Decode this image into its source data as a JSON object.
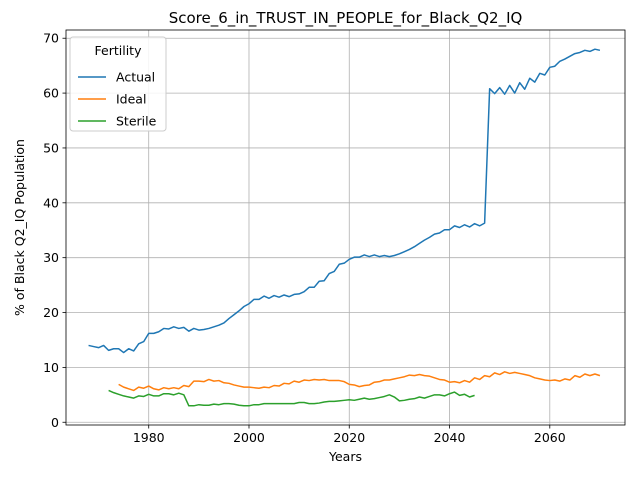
{
  "chart_data": {
    "type": "line",
    "title": "Score_6_in_TRUST_IN_PEOPLE_for_Black_Q2_IQ",
    "xlabel": "Years",
    "ylabel": "% of Black Q2_IQ Population",
    "xlim": [
      1963.5,
      2075
    ],
    "ylim": [
      -0.5,
      71.5
    ],
    "xticks": [
      1980,
      2000,
      2020,
      2040,
      2060
    ],
    "yticks": [
      0,
      10,
      20,
      30,
      40,
      50,
      60,
      70
    ],
    "grid": true,
    "legend": {
      "title": "Fertility",
      "placement": "top-left"
    },
    "series": [
      {
        "name": "Actual",
        "color": "#1f77b4",
        "points": [
          [
            1968,
            14.0
          ],
          [
            1969,
            13.8
          ],
          [
            1970,
            13.6
          ],
          [
            1971,
            14.0
          ],
          [
            1972,
            13.1
          ],
          [
            1973,
            13.4
          ],
          [
            1974,
            13.4
          ],
          [
            1975,
            12.7
          ],
          [
            1976,
            13.4
          ],
          [
            1977,
            13.0
          ],
          [
            1978,
            14.3
          ],
          [
            1979,
            14.7
          ],
          [
            1980,
            16.2
          ],
          [
            1981,
            16.2
          ],
          [
            1982,
            16.5
          ],
          [
            1983,
            17.1
          ],
          [
            1984,
            17.0
          ],
          [
            1985,
            17.4
          ],
          [
            1986,
            17.1
          ],
          [
            1987,
            17.3
          ],
          [
            1988,
            16.6
          ],
          [
            1989,
            17.1
          ],
          [
            1990,
            16.8
          ],
          [
            1991,
            16.9
          ],
          [
            1992,
            17.1
          ],
          [
            1993,
            17.4
          ],
          [
            1994,
            17.7
          ],
          [
            1995,
            18.1
          ],
          [
            1996,
            18.9
          ],
          [
            1997,
            19.6
          ],
          [
            1998,
            20.3
          ],
          [
            1999,
            21.1
          ],
          [
            2000,
            21.6
          ],
          [
            2001,
            22.4
          ],
          [
            2002,
            22.4
          ],
          [
            2003,
            23.0
          ],
          [
            2004,
            22.6
          ],
          [
            2005,
            23.1
          ],
          [
            2006,
            22.8
          ],
          [
            2007,
            23.2
          ],
          [
            2008,
            22.9
          ],
          [
            2009,
            23.3
          ],
          [
            2010,
            23.4
          ],
          [
            2011,
            23.8
          ],
          [
            2012,
            24.6
          ],
          [
            2013,
            24.6
          ],
          [
            2014,
            25.7
          ],
          [
            2015,
            25.8
          ],
          [
            2016,
            27.1
          ],
          [
            2017,
            27.5
          ],
          [
            2018,
            28.8
          ],
          [
            2019,
            29.0
          ],
          [
            2020,
            29.7
          ],
          [
            2021,
            30.1
          ],
          [
            2022,
            30.1
          ],
          [
            2023,
            30.5
          ],
          [
            2024,
            30.2
          ],
          [
            2025,
            30.5
          ],
          [
            2026,
            30.2
          ],
          [
            2027,
            30.4
          ],
          [
            2028,
            30.2
          ],
          [
            2029,
            30.4
          ],
          [
            2030,
            30.7
          ],
          [
            2031,
            31.1
          ],
          [
            2032,
            31.5
          ],
          [
            2033,
            32.0
          ],
          [
            2034,
            32.6
          ],
          [
            2035,
            33.2
          ],
          [
            2036,
            33.7
          ],
          [
            2037,
            34.3
          ],
          [
            2038,
            34.5
          ],
          [
            2039,
            35.1
          ],
          [
            2040,
            35.1
          ],
          [
            2041,
            35.8
          ],
          [
            2042,
            35.5
          ],
          [
            2043,
            36.0
          ],
          [
            2044,
            35.6
          ],
          [
            2045,
            36.2
          ],
          [
            2046,
            35.8
          ],
          [
            2047,
            36.3
          ],
          [
            2048,
            60.8
          ],
          [
            2049,
            59.9
          ],
          [
            2050,
            61.0
          ],
          [
            2051,
            59.8
          ],
          [
            2052,
            61.4
          ],
          [
            2053,
            60.0
          ],
          [
            2054,
            61.9
          ],
          [
            2055,
            60.7
          ],
          [
            2056,
            62.7
          ],
          [
            2057,
            62.0
          ],
          [
            2058,
            63.6
          ],
          [
            2059,
            63.3
          ],
          [
            2060,
            64.7
          ],
          [
            2061,
            64.9
          ],
          [
            2062,
            65.8
          ],
          [
            2063,
            66.2
          ],
          [
            2064,
            66.7
          ],
          [
            2065,
            67.2
          ],
          [
            2066,
            67.4
          ],
          [
            2067,
            67.8
          ],
          [
            2068,
            67.6
          ],
          [
            2069,
            68.0
          ],
          [
            2070,
            67.8
          ]
        ]
      },
      {
        "name": "Ideal",
        "color": "#ff7f0e",
        "points": [
          [
            1974,
            6.9
          ],
          [
            1975,
            6.4
          ],
          [
            1976,
            6.1
          ],
          [
            1977,
            5.8
          ],
          [
            1978,
            6.4
          ],
          [
            1979,
            6.2
          ],
          [
            1980,
            6.6
          ],
          [
            1981,
            6.1
          ],
          [
            1982,
            5.9
          ],
          [
            1983,
            6.3
          ],
          [
            1984,
            6.1
          ],
          [
            1985,
            6.3
          ],
          [
            1986,
            6.1
          ],
          [
            1987,
            6.7
          ],
          [
            1988,
            6.5
          ],
          [
            1989,
            7.5
          ],
          [
            1990,
            7.5
          ],
          [
            1991,
            7.4
          ],
          [
            1992,
            7.8
          ],
          [
            1993,
            7.5
          ],
          [
            1994,
            7.6
          ],
          [
            1995,
            7.2
          ],
          [
            1996,
            7.1
          ],
          [
            1997,
            6.8
          ],
          [
            1998,
            6.6
          ],
          [
            1999,
            6.4
          ],
          [
            2000,
            6.4
          ],
          [
            2001,
            6.3
          ],
          [
            2002,
            6.2
          ],
          [
            2003,
            6.4
          ],
          [
            2004,
            6.3
          ],
          [
            2005,
            6.7
          ],
          [
            2006,
            6.6
          ],
          [
            2007,
            7.1
          ],
          [
            2008,
            7.0
          ],
          [
            2009,
            7.5
          ],
          [
            2010,
            7.3
          ],
          [
            2011,
            7.7
          ],
          [
            2012,
            7.6
          ],
          [
            2013,
            7.8
          ],
          [
            2014,
            7.7
          ],
          [
            2015,
            7.8
          ],
          [
            2016,
            7.6
          ],
          [
            2017,
            7.6
          ],
          [
            2018,
            7.6
          ],
          [
            2019,
            7.4
          ],
          [
            2020,
            6.9
          ],
          [
            2021,
            6.8
          ],
          [
            2022,
            6.5
          ],
          [
            2023,
            6.7
          ],
          [
            2024,
            6.8
          ],
          [
            2025,
            7.3
          ],
          [
            2026,
            7.4
          ],
          [
            2027,
            7.7
          ],
          [
            2028,
            7.7
          ],
          [
            2029,
            7.9
          ],
          [
            2030,
            8.1
          ],
          [
            2031,
            8.3
          ],
          [
            2032,
            8.6
          ],
          [
            2033,
            8.5
          ],
          [
            2034,
            8.7
          ],
          [
            2035,
            8.5
          ],
          [
            2036,
            8.4
          ],
          [
            2037,
            8.1
          ],
          [
            2038,
            7.8
          ],
          [
            2039,
            7.7
          ],
          [
            2040,
            7.3
          ],
          [
            2041,
            7.4
          ],
          [
            2042,
            7.2
          ],
          [
            2043,
            7.6
          ],
          [
            2044,
            7.3
          ],
          [
            2045,
            8.1
          ],
          [
            2046,
            7.8
          ],
          [
            2047,
            8.5
          ],
          [
            2048,
            8.3
          ],
          [
            2049,
            9.0
          ],
          [
            2050,
            8.7
          ],
          [
            2051,
            9.2
          ],
          [
            2052,
            8.9
          ],
          [
            2053,
            9.1
          ],
          [
            2054,
            8.9
          ],
          [
            2055,
            8.7
          ],
          [
            2056,
            8.5
          ],
          [
            2057,
            8.1
          ],
          [
            2058,
            7.9
          ],
          [
            2059,
            7.7
          ],
          [
            2060,
            7.6
          ],
          [
            2061,
            7.7
          ],
          [
            2062,
            7.5
          ],
          [
            2063,
            7.9
          ],
          [
            2064,
            7.7
          ],
          [
            2065,
            8.5
          ],
          [
            2066,
            8.2
          ],
          [
            2067,
            8.8
          ],
          [
            2068,
            8.5
          ],
          [
            2069,
            8.8
          ],
          [
            2070,
            8.5
          ]
        ]
      },
      {
        "name": "Sterile",
        "color": "#2ca02c",
        "points": [
          [
            1972,
            5.8
          ],
          [
            1973,
            5.4
          ],
          [
            1974,
            5.1
          ],
          [
            1975,
            4.8
          ],
          [
            1976,
            4.6
          ],
          [
            1977,
            4.4
          ],
          [
            1978,
            4.8
          ],
          [
            1979,
            4.7
          ],
          [
            1980,
            5.1
          ],
          [
            1981,
            4.8
          ],
          [
            1982,
            4.8
          ],
          [
            1983,
            5.2
          ],
          [
            1984,
            5.2
          ],
          [
            1985,
            5.0
          ],
          [
            1986,
            5.3
          ],
          [
            1987,
            5.0
          ],
          [
            1988,
            3.0
          ],
          [
            1989,
            3.0
          ],
          [
            1990,
            3.2
          ],
          [
            1991,
            3.1
          ],
          [
            1992,
            3.1
          ],
          [
            1993,
            3.3
          ],
          [
            1994,
            3.2
          ],
          [
            1995,
            3.4
          ],
          [
            1996,
            3.4
          ],
          [
            1997,
            3.3
          ],
          [
            1998,
            3.1
          ],
          [
            1999,
            3.0
          ],
          [
            2000,
            3.0
          ],
          [
            2001,
            3.2
          ],
          [
            2002,
            3.2
          ],
          [
            2003,
            3.4
          ],
          [
            2004,
            3.4
          ],
          [
            2005,
            3.4
          ],
          [
            2006,
            3.4
          ],
          [
            2007,
            3.4
          ],
          [
            2008,
            3.4
          ],
          [
            2009,
            3.4
          ],
          [
            2010,
            3.6
          ],
          [
            2011,
            3.6
          ],
          [
            2012,
            3.4
          ],
          [
            2013,
            3.4
          ],
          [
            2014,
            3.5
          ],
          [
            2015,
            3.7
          ],
          [
            2016,
            3.8
          ],
          [
            2017,
            3.8
          ],
          [
            2018,
            3.9
          ],
          [
            2019,
            4.0
          ],
          [
            2020,
            4.1
          ],
          [
            2021,
            4.0
          ],
          [
            2022,
            4.2
          ],
          [
            2023,
            4.4
          ],
          [
            2024,
            4.2
          ],
          [
            2025,
            4.3
          ],
          [
            2026,
            4.5
          ],
          [
            2027,
            4.7
          ],
          [
            2028,
            5.0
          ],
          [
            2029,
            4.6
          ],
          [
            2030,
            3.9
          ],
          [
            2031,
            4.0
          ],
          [
            2032,
            4.2
          ],
          [
            2033,
            4.3
          ],
          [
            2034,
            4.6
          ],
          [
            2035,
            4.4
          ],
          [
            2036,
            4.7
          ],
          [
            2037,
            5.0
          ],
          [
            2038,
            5.0
          ],
          [
            2039,
            4.8
          ],
          [
            2040,
            5.2
          ],
          [
            2041,
            5.5
          ],
          [
            2042,
            4.9
          ],
          [
            2043,
            5.1
          ],
          [
            2044,
            4.6
          ],
          [
            2045,
            4.9
          ]
        ]
      }
    ]
  }
}
